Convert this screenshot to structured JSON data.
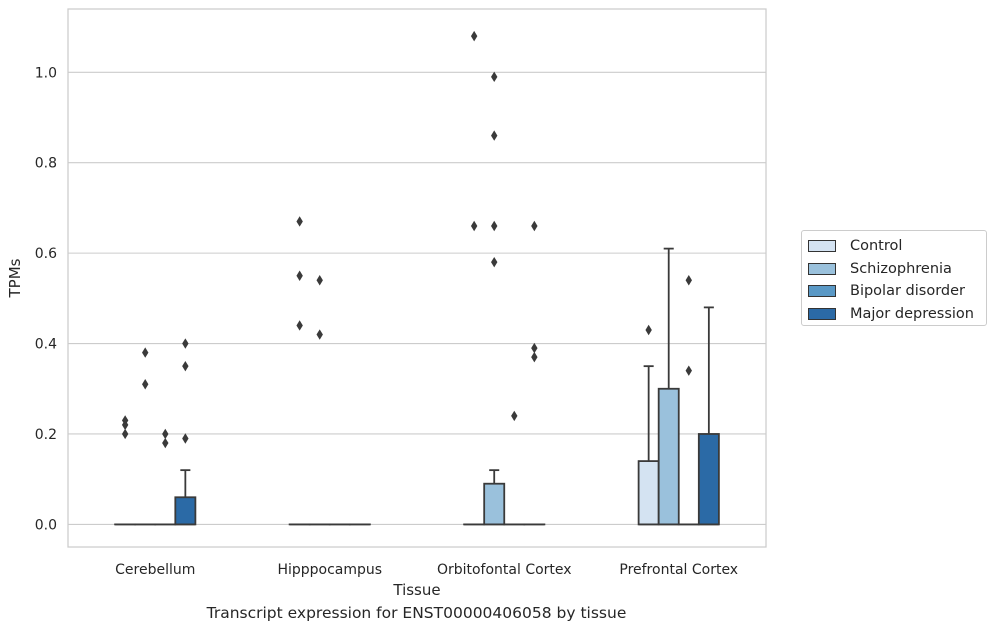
{
  "caption": "Transcript expression for ENST00000406058 by tissue",
  "chart_data": {
    "type": "box",
    "title": "",
    "xlabel": "Tissue",
    "ylabel": "TPMs",
    "ylim": [
      -0.05,
      1.14
    ],
    "yticks": [
      0.0,
      0.2,
      0.4,
      0.6,
      0.8,
      1.0
    ],
    "ytick_labels": [
      "0.0",
      "0.2",
      "0.4",
      "0.6",
      "0.8",
      "1.0"
    ],
    "grid": "horizontal",
    "legend_position": "outside-right",
    "categories": [
      "Cerebellum",
      "Hipppocampus",
      "Orbitofontal Cortex",
      "Prefrontal Cortex"
    ],
    "series": [
      {
        "name": "Control",
        "color": "#d4e3f2",
        "boxes": [
          {
            "q1": 0,
            "median": 0,
            "q3": 0,
            "whisker_low": 0,
            "whisker_high": 0,
            "outliers": [
              0.2,
              0.22,
              0.23
            ]
          },
          {
            "q1": 0,
            "median": 0,
            "q3": 0,
            "whisker_low": 0,
            "whisker_high": 0,
            "outliers": [
              0.44,
              0.55,
              0.67
            ]
          },
          {
            "q1": 0,
            "median": 0,
            "q3": 0,
            "whisker_low": 0,
            "whisker_high": 0,
            "outliers": [
              0.66,
              1.08
            ]
          },
          {
            "q1": 0,
            "median": 0,
            "q3": 0.14,
            "whisker_low": 0,
            "whisker_high": 0.35,
            "outliers": [
              0.43
            ]
          }
        ]
      },
      {
        "name": "Schizophrenia",
        "color": "#9ac1dc",
        "boxes": [
          {
            "q1": 0,
            "median": 0,
            "q3": 0,
            "whisker_low": 0,
            "whisker_high": 0,
            "outliers": [
              0.31,
              0.38
            ]
          },
          {
            "q1": 0,
            "median": 0,
            "q3": 0,
            "whisker_low": 0,
            "whisker_high": 0,
            "outliers": [
              0.42,
              0.54
            ]
          },
          {
            "q1": 0,
            "median": 0,
            "q3": 0.09,
            "whisker_low": 0,
            "whisker_high": 0.12,
            "outliers": [
              0.58,
              0.66,
              0.86,
              0.99
            ]
          },
          {
            "q1": 0,
            "median": 0,
            "q3": 0.3,
            "whisker_low": 0,
            "whisker_high": 0.61,
            "outliers": []
          }
        ]
      },
      {
        "name": "Bipolar disorder",
        "color": "#5a99c6",
        "boxes": [
          {
            "q1": 0,
            "median": 0,
            "q3": 0,
            "whisker_low": 0,
            "whisker_high": 0,
            "outliers": [
              0.18,
              0.2
            ]
          },
          {
            "q1": 0,
            "median": 0,
            "q3": 0,
            "whisker_low": 0,
            "whisker_high": 0,
            "outliers": []
          },
          {
            "q1": 0,
            "median": 0,
            "q3": 0,
            "whisker_low": 0,
            "whisker_high": 0,
            "outliers": [
              0.24
            ]
          },
          {
            "q1": 0,
            "median": 0,
            "q3": 0,
            "whisker_low": 0,
            "whisker_high": 0,
            "outliers": [
              0.34,
              0.54
            ]
          }
        ]
      },
      {
        "name": "Major depression",
        "color": "#2b6aa6",
        "boxes": [
          {
            "q1": 0,
            "median": 0,
            "q3": 0.06,
            "whisker_low": 0,
            "whisker_high": 0.12,
            "outliers": [
              0.19,
              0.35,
              0.4
            ]
          },
          {
            "q1": 0,
            "median": 0,
            "q3": 0,
            "whisker_low": 0,
            "whisker_high": 0,
            "outliers": []
          },
          {
            "q1": 0,
            "median": 0,
            "q3": 0,
            "whisker_low": 0,
            "whisker_high": 0,
            "outliers": [
              0.37,
              0.39,
              0.66
            ]
          },
          {
            "q1": 0,
            "median": 0,
            "q3": 0.2,
            "whisker_low": 0,
            "whisker_high": 0.48,
            "outliers": []
          }
        ]
      }
    ]
  }
}
